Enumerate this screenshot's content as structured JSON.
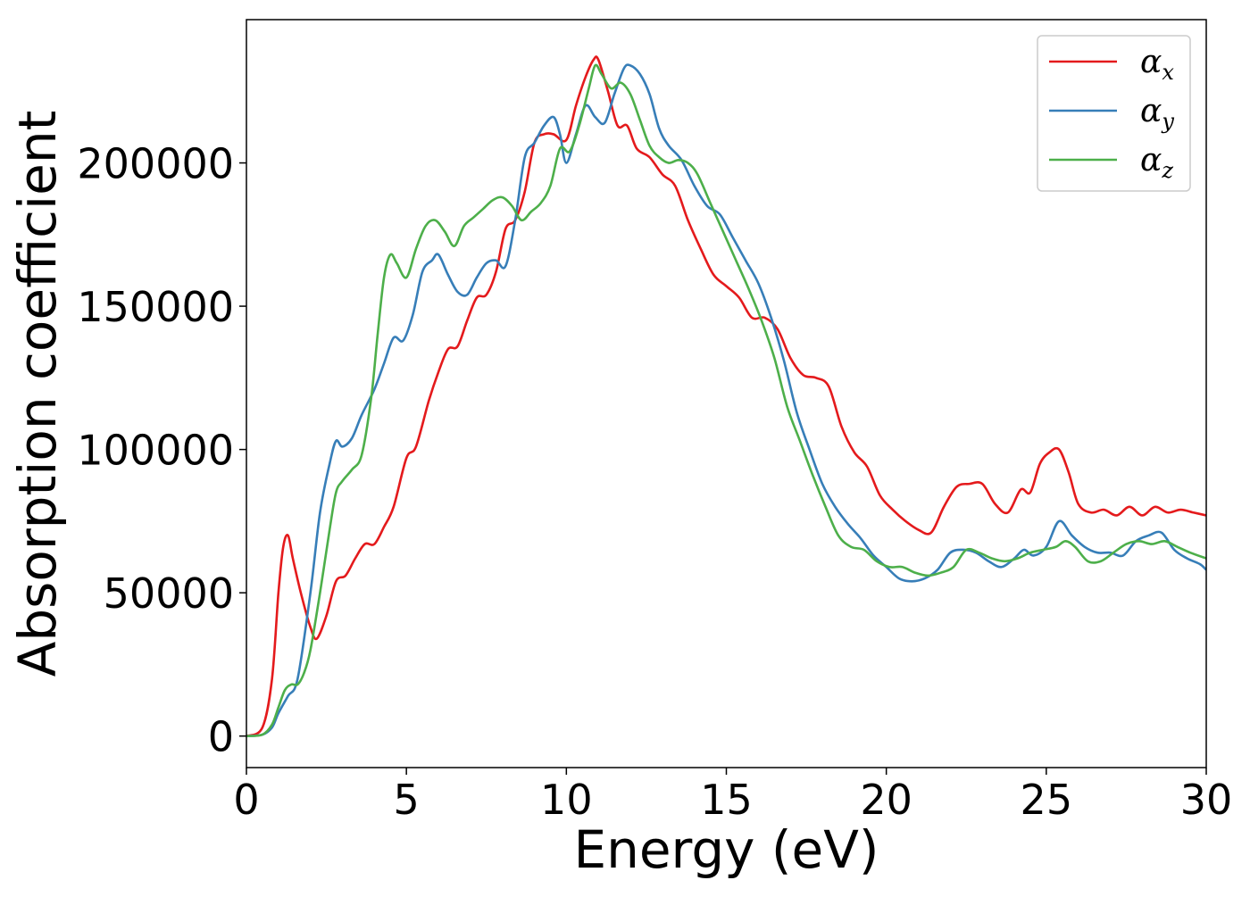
{
  "chart_data": {
    "type": "line",
    "title": "",
    "xlabel": "Energy (eV)",
    "ylabel": "Absorption coefficient",
    "xlim": [
      0,
      30
    ],
    "ylim": [
      -11000,
      250000
    ],
    "xticks": [
      0,
      5,
      10,
      15,
      20,
      25,
      30
    ],
    "xtick_labels": [
      "0",
      "5",
      "10",
      "15",
      "20",
      "25",
      "30"
    ],
    "yticks": [
      0,
      50000,
      100000,
      150000,
      200000
    ],
    "ytick_labels": [
      "0",
      "50000",
      "100000",
      "150000",
      "200000"
    ],
    "grid": false,
    "legend_position": "top-right",
    "series": [
      {
        "name": "αx",
        "symbol": "α",
        "subscript": "x",
        "color": "#e41a1c",
        "x": [
          0,
          0.5,
          0.8,
          1.0,
          1.15,
          1.3,
          1.45,
          1.7,
          2.0,
          2.2,
          2.5,
          2.8,
          3.1,
          3.4,
          3.7,
          4.0,
          4.3,
          4.6,
          5.0,
          5.3,
          5.7,
          6.0,
          6.3,
          6.6,
          6.9,
          7.2,
          7.5,
          7.8,
          8.1,
          8.4,
          8.7,
          9.0,
          9.3,
          9.6,
          10.0,
          10.3,
          10.6,
          10.85,
          11.0,
          11.3,
          11.6,
          11.9,
          12.2,
          12.6,
          13.0,
          13.4,
          13.8,
          14.2,
          14.6,
          15.0,
          15.4,
          15.8,
          16.2,
          16.6,
          17.0,
          17.4,
          17.8,
          18.2,
          18.6,
          19.0,
          19.4,
          19.8,
          20.2,
          20.6,
          21.0,
          21.4,
          21.8,
          22.2,
          22.6,
          23.0,
          23.4,
          23.8,
          24.2,
          24.5,
          24.8,
          25.1,
          25.4,
          25.7,
          26.0,
          26.4,
          26.8,
          27.2,
          27.6,
          28.0,
          28.4,
          28.8,
          29.2,
          29.6,
          30.0
        ],
        "y": [
          0,
          3000,
          20000,
          50000,
          66000,
          70000,
          62000,
          50000,
          38000,
          34000,
          42000,
          54000,
          56000,
          62000,
          67000,
          67000,
          73000,
          80000,
          97000,
          101000,
          117000,
          127000,
          135000,
          136000,
          145000,
          153000,
          154000,
          162000,
          177000,
          180000,
          190000,
          207000,
          210000,
          210000,
          208000,
          220000,
          230000,
          236000,
          236000,
          225000,
          213000,
          213000,
          205000,
          202000,
          196000,
          192000,
          180000,
          170000,
          161000,
          157000,
          153000,
          146000,
          146000,
          142000,
          132000,
          126000,
          125000,
          122000,
          108000,
          99000,
          94000,
          84000,
          79000,
          75000,
          72000,
          71000,
          80000,
          87000,
          88000,
          88000,
          81000,
          78000,
          86000,
          85000,
          95000,
          99000,
          100000,
          92000,
          81000,
          78000,
          79000,
          77000,
          80000,
          77000,
          80000,
          78000,
          79000,
          78000,
          77000
        ]
      },
      {
        "name": "αy",
        "symbol": "α",
        "subscript": "y",
        "color": "#377eb8",
        "x": [
          0,
          0.5,
          0.8,
          1.0,
          1.3,
          1.6,
          2.0,
          2.3,
          2.6,
          2.8,
          3.0,
          3.3,
          3.6,
          4.0,
          4.3,
          4.6,
          4.9,
          5.2,
          5.5,
          5.8,
          6.0,
          6.3,
          6.6,
          6.9,
          7.2,
          7.5,
          7.8,
          8.1,
          8.4,
          8.7,
          9.0,
          9.3,
          9.6,
          9.8,
          10.0,
          10.3,
          10.6,
          10.9,
          11.2,
          11.5,
          11.8,
          12.0,
          12.3,
          12.6,
          12.9,
          13.2,
          13.6,
          14.0,
          14.4,
          14.8,
          15.2,
          15.6,
          16.0,
          16.4,
          16.8,
          17.2,
          17.6,
          18.0,
          18.4,
          18.8,
          19.2,
          19.6,
          20.0,
          20.4,
          20.8,
          21.2,
          21.6,
          22.0,
          22.4,
          22.8,
          23.2,
          23.6,
          24.0,
          24.3,
          24.6,
          25.0,
          25.4,
          25.8,
          26.2,
          26.6,
          27.0,
          27.4,
          27.8,
          28.2,
          28.6,
          29.0,
          29.4,
          29.8,
          30.0
        ],
        "y": [
          0,
          500,
          3000,
          8000,
          14000,
          20000,
          50000,
          78000,
          95000,
          103000,
          101000,
          104000,
          112000,
          121000,
          130000,
          139000,
          138000,
          147000,
          162000,
          166000,
          168000,
          161000,
          155000,
          154000,
          160000,
          165000,
          166000,
          164000,
          180000,
          202000,
          207000,
          213000,
          216000,
          210000,
          200000,
          210000,
          220000,
          216000,
          214000,
          224000,
          233000,
          234000,
          231000,
          224000,
          212000,
          206000,
          201000,
          192000,
          185000,
          182000,
          174000,
          166000,
          158000,
          146000,
          131000,
          113000,
          100000,
          88000,
          80000,
          74000,
          69000,
          63000,
          59000,
          55000,
          54000,
          55000,
          58000,
          64000,
          65000,
          64000,
          61000,
          59000,
          62000,
          65000,
          63000,
          66000,
          75000,
          70000,
          66000,
          64000,
          64000,
          63000,
          68000,
          70000,
          71000,
          65000,
          62000,
          60000,
          58000
        ]
      },
      {
        "name": "αz",
        "symbol": "α",
        "subscript": "z",
        "color": "#4daf4a",
        "x": [
          0,
          0.5,
          0.8,
          1.0,
          1.2,
          1.4,
          1.6,
          1.8,
          2.0,
          2.3,
          2.6,
          2.8,
          3.0,
          3.3,
          3.6,
          3.9,
          4.1,
          4.3,
          4.5,
          4.7,
          5.0,
          5.3,
          5.6,
          5.9,
          6.2,
          6.5,
          6.8,
          7.1,
          7.4,
          7.7,
          8.0,
          8.3,
          8.6,
          8.9,
          9.2,
          9.5,
          9.8,
          10.1,
          10.4,
          10.7,
          10.9,
          11.1,
          11.4,
          11.7,
          12.0,
          12.3,
          12.6,
          12.9,
          13.2,
          13.5,
          13.8,
          14.1,
          14.5,
          14.9,
          15.3,
          15.7,
          16.1,
          16.5,
          16.9,
          17.3,
          17.7,
          18.1,
          18.5,
          18.9,
          19.3,
          19.7,
          20.1,
          20.5,
          20.9,
          21.3,
          21.7,
          22.1,
          22.5,
          22.9,
          23.3,
          23.7,
          24.1,
          24.5,
          24.9,
          25.3,
          25.6,
          25.9,
          26.3,
          26.7,
          27.1,
          27.5,
          27.9,
          28.3,
          28.7,
          29.1,
          29.5,
          30.0
        ],
        "y": [
          0,
          500,
          4000,
          10000,
          16000,
          18000,
          18000,
          22000,
          30000,
          50000,
          72000,
          85000,
          89000,
          93000,
          98000,
          118000,
          140000,
          160000,
          168000,
          165000,
          160000,
          170000,
          178000,
          180000,
          176000,
          171000,
          178000,
          181000,
          184000,
          187000,
          188000,
          185000,
          180000,
          183000,
          186000,
          192000,
          205000,
          204000,
          213000,
          226000,
          234000,
          231000,
          226000,
          228000,
          224000,
          215000,
          206000,
          202000,
          200000,
          201000,
          200000,
          196000,
          186000,
          176000,
          166000,
          156000,
          145000,
          132000,
          115000,
          103000,
          91000,
          80000,
          70000,
          66000,
          65000,
          61000,
          59000,
          59000,
          57000,
          56000,
          57000,
          59000,
          65000,
          64000,
          62000,
          61000,
          62000,
          64000,
          65000,
          66000,
          68000,
          66000,
          61000,
          61000,
          64000,
          67000,
          68000,
          67000,
          68000,
          66000,
          64000,
          62000
        ]
      }
    ]
  }
}
